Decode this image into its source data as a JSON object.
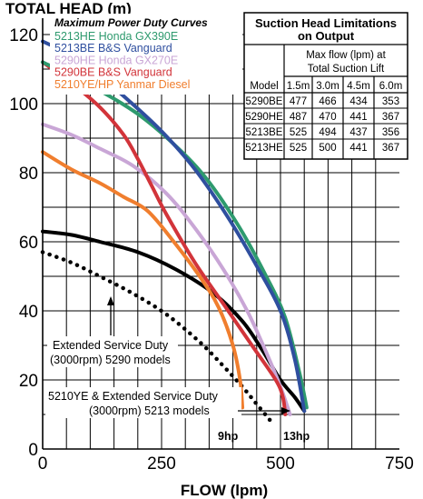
{
  "chart_data": {
    "type": "line",
    "ylabel": "TOTAL HEAD (m)",
    "xlabel": "FLOW (lpm)",
    "xlim": [
      0,
      750
    ],
    "ylim": [
      0,
      125
    ],
    "x_ticks": [
      0,
      250,
      500,
      750
    ],
    "y_ticks": [
      0,
      20,
      40,
      60,
      80,
      100,
      120
    ],
    "grid": true,
    "legend_title": "Maximum Power Duty Curves",
    "legend_position": "top-left",
    "series": [
      {
        "name": "5213HE Honda GX390E",
        "color": "#2e9a6e",
        "style": "solid",
        "x": [
          0,
          60,
          130,
          200,
          270,
          340,
          410,
          470,
          510,
          540,
          555
        ],
        "y": [
          112,
          108,
          103,
          97,
          89,
          79,
          65,
          50,
          38,
          22,
          12
        ]
      },
      {
        "name": "5213BE B&S Vanguard",
        "color": "#2f4f9f",
        "style": "solid",
        "x": [
          0,
          60,
          120,
          180,
          250,
          320,
          390,
          450,
          500,
          530,
          550
        ],
        "y": [
          118,
          114,
          108,
          101,
          92,
          81,
          67,
          53,
          40,
          26,
          11
        ]
      },
      {
        "name": "5290HE Honda GX270E",
        "color": "#c9a6d6",
        "style": "solid",
        "x": [
          0,
          60,
          120,
          190,
          260,
          320,
          380,
          430,
          470,
          500,
          520
        ],
        "y": [
          94,
          91,
          87,
          82,
          74,
          64,
          52,
          40,
          28,
          18,
          10
        ]
      },
      {
        "name": "5290BE B&S Vanguard",
        "color": "#d2343a",
        "style": "solid",
        "x": [
          0,
          60,
          120,
          170,
          200,
          230,
          260,
          320,
          380,
          440,
          490,
          505,
          510
        ],
        "y": [
          112,
          106,
          99,
          91,
          84,
          76,
          68,
          54,
          42,
          30,
          20,
          15,
          10
        ]
      },
      {
        "name": "5210YE/HP Yanmar Diesel",
        "color": "#f07e2e",
        "style": "solid",
        "x": [
          0,
          60,
          120,
          170,
          220,
          270,
          330,
          370,
          400,
          415,
          420
        ],
        "y": [
          86,
          81,
          77,
          73,
          69,
          61,
          50,
          41,
          30,
          20,
          12
        ]
      },
      {
        "name": "",
        "color": "#000000",
        "style": "solid",
        "x": [
          0,
          60,
          120,
          200,
          280,
          360,
          420,
          460,
          500,
          530,
          550
        ],
        "y": [
          63,
          62,
          60,
          57,
          52,
          45,
          37,
          29,
          20,
          15,
          11
        ]
      },
      {
        "name": "",
        "color": "#000000",
        "style": "dotted",
        "x": [
          0,
          60,
          120,
          190,
          260,
          330,
          380,
          420,
          450,
          480
        ],
        "y": [
          57,
          54,
          50,
          45,
          39,
          31,
          24,
          18,
          13,
          8
        ]
      }
    ],
    "annotations": [
      {
        "text_lines": [
          "Extended Service Duty",
          "(3000rpm) 5290 models"
        ]
      },
      {
        "text_lines": [
          "5210YE & Extended Service Duty",
          "(3000rpm) 5213 models"
        ]
      },
      {
        "text": "9hp"
      },
      {
        "text": "13hp"
      }
    ],
    "table": {
      "title_lines": [
        "Suction Head Limitations",
        "on Output"
      ],
      "subtitle_lines": [
        "Max flow (lpm) at",
        "Total Suction Lift"
      ],
      "columns": [
        "Model",
        "1.5m",
        "3.0m",
        "4.5m",
        "6.0m"
      ],
      "rows": [
        [
          "5290BE",
          "477",
          "466",
          "434",
          "353"
        ],
        [
          "5290HE",
          "487",
          "470",
          "441",
          "367"
        ],
        [
          "5213BE",
          "525",
          "494",
          "437",
          "356"
        ],
        [
          "5213HE",
          "525",
          "500",
          "441",
          "367"
        ]
      ]
    }
  }
}
